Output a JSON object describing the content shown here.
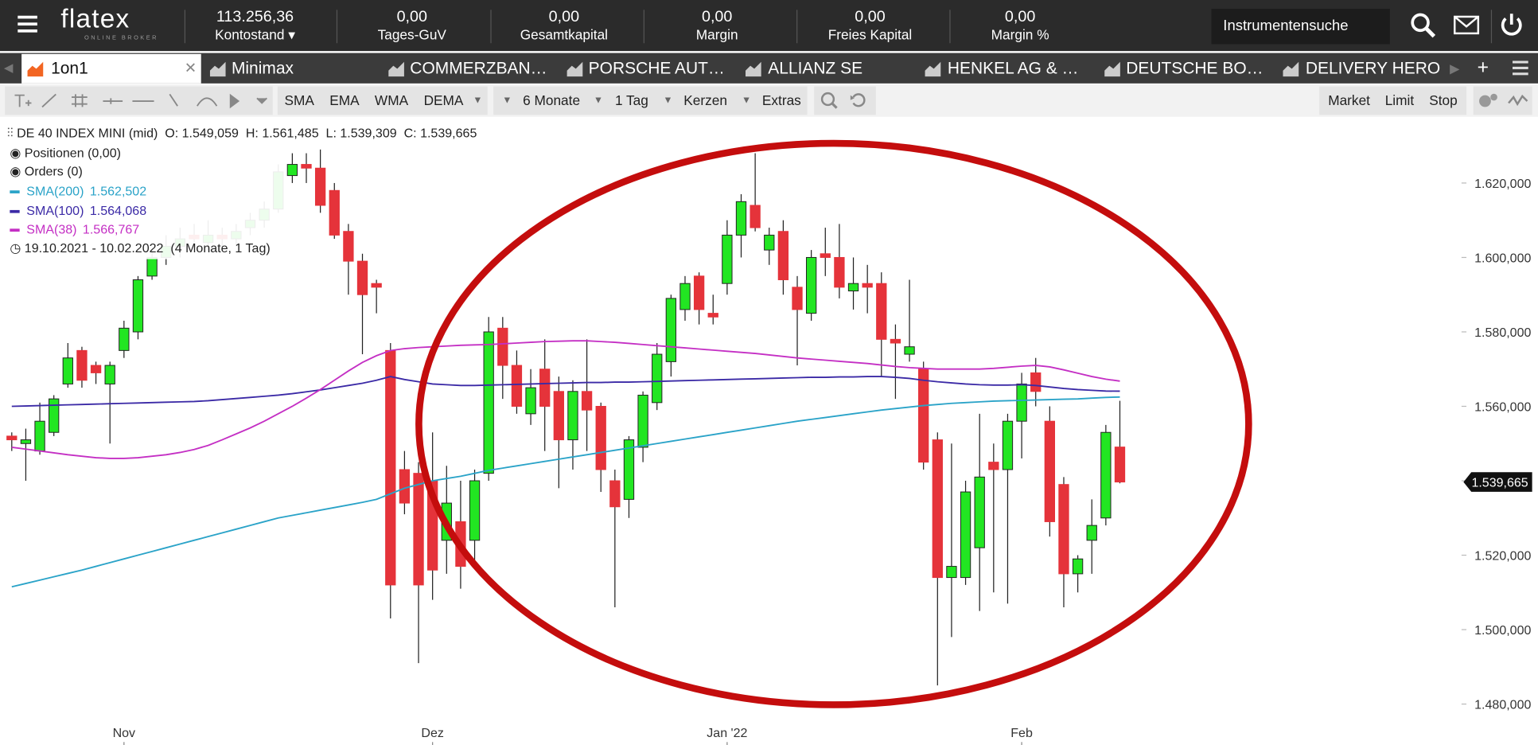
{
  "header": {
    "logo": "flatex",
    "logo_sub": "ONLINE BROKER",
    "stats": [
      {
        "value": "113.256,36",
        "label": "Kontostand"
      },
      {
        "value": "0,00",
        "label": "Tages-GuV"
      },
      {
        "value": "0,00",
        "label": "Gesamtkapital"
      },
      {
        "value": "0,00",
        "label": "Margin"
      },
      {
        "value": "0,00",
        "label": "Freies Kapital"
      },
      {
        "value": "0,00",
        "label": "Margin %"
      }
    ],
    "search": "Instrumentensuche"
  },
  "tabs": [
    "1on1",
    "Minimax",
    "COMMERZBAN…",
    "PORSCHE AUT…",
    "ALLIANZ SE",
    "HENKEL AG & …",
    "DEUTSCHE BO…",
    "DELIVERY HERO"
  ],
  "toolbar": {
    "indicators": [
      "SMA",
      "EMA",
      "WMA",
      "DEMA"
    ],
    "period": "6 Monate",
    "interval": "1 Tag",
    "style": "Kerzen",
    "extras": "Extras",
    "orders": [
      "Market",
      "Limit",
      "Stop"
    ]
  },
  "legend": {
    "positions": "Positionen (0,00)",
    "orders": "Orders (0)",
    "range": "19.10.2021 - 10.02.2022",
    "range_note": "(4 Monate, 1 Tag)"
  },
  "chart_data": {
    "type": "candlestick",
    "title": "DE 40 INDEX MINI (mid)",
    "ohlc_labels": [
      "O: 1.549,059",
      "H: 1.561,485",
      "L: 1.539,309",
      "C: 1.539,665"
    ],
    "last_price_label": "1.539,665",
    "categories": [
      null,
      null,
      null,
      null,
      null,
      null,
      null,
      null,
      "Nov",
      null,
      null,
      null,
      null,
      null,
      null,
      null,
      null,
      null,
      null,
      null,
      null,
      null,
      null,
      null,
      null,
      null,
      null,
      null,
      null,
      null,
      "Dez",
      null,
      null,
      null,
      null,
      null,
      null,
      null,
      null,
      null,
      null,
      null,
      null,
      null,
      null,
      null,
      null,
      null,
      null,
      null,
      null,
      "Jan '22",
      null,
      null,
      null,
      null,
      null,
      null,
      null,
      null,
      null,
      null,
      null,
      null,
      null,
      null,
      null,
      null,
      null,
      null,
      null,
      null,
      "Feb",
      null,
      null,
      null,
      null,
      null,
      null,
      null
    ],
    "open": [
      1552,
      1550,
      1548,
      1553,
      1566,
      1575,
      1571,
      1566,
      1575,
      1580,
      1595,
      1600,
      1603,
      1606,
      1604,
      1606,
      1605,
      1608,
      1610,
      1613,
      1622,
      1625,
      1624,
      1618,
      1607,
      1599,
      1593,
      1575,
      1543,
      1542,
      1540,
      1524,
      1529,
      1524,
      1542,
      1581,
      1571,
      1558,
      1570,
      1564,
      1551,
      1564,
      1560,
      1540,
      1535,
      1549,
      1561,
      1572,
      1586,
      1595,
      1585,
      1593,
      1606,
      1614,
      1602,
      1607,
      1592,
      1585,
      1601,
      1600,
      1591,
      1593,
      1593,
      1578,
      1574,
      1570,
      1551,
      1514,
      1514,
      1522,
      1545,
      1543,
      1556,
      1569,
      1556,
      1539,
      1515,
      1524,
      1530,
      1549.059
    ],
    "high": [
      1553,
      1554,
      1561,
      1563,
      1577,
      1576,
      1572,
      1572,
      1583,
      1595,
      1602,
      1606,
      1608,
      1609,
      1610,
      1608,
      1609,
      1612,
      1615,
      1625,
      1628,
      1628,
      1629,
      1620,
      1609,
      1601,
      1594,
      1577,
      1548,
      1545,
      1553,
      1544,
      1540,
      1543,
      1584,
      1584,
      1575,
      1570,
      1578,
      1568,
      1567,
      1578,
      1561,
      1543,
      1552,
      1564,
      1577,
      1590,
      1595,
      1596,
      1590,
      1610,
      1617,
      1628,
      1608,
      1610,
      1595,
      1602,
      1608,
      1609,
      1600,
      1598,
      1596,
      1582,
      1594,
      1572,
      1553,
      1550,
      1540,
      1558,
      1550,
      1558,
      1569,
      1573,
      1560,
      1541,
      1520,
      1535,
      1555,
      1561.485
    ],
    "low": [
      1548,
      1540,
      1547,
      1552,
      1565,
      1565,
      1566,
      1550,
      1573,
      1578,
      1594,
      1598,
      1600,
      1603,
      1602,
      1602,
      1603,
      1606,
      1608,
      1612,
      1620,
      1620,
      1612,
      1605,
      1590,
      1574,
      1585,
      1503,
      1531,
      1491,
      1508,
      1515,
      1511,
      1517,
      1540,
      1562,
      1558,
      1555,
      1548,
      1538,
      1543,
      1548,
      1537,
      1506,
      1530,
      1545,
      1559,
      1568,
      1583,
      1582,
      1582,
      1590,
      1600,
      1607,
      1598,
      1590,
      1571,
      1583,
      1595,
      1589,
      1586,
      1585,
      1568,
      1562,
      1572,
      1543,
      1485,
      1498,
      1512,
      1505,
      1510,
      1507,
      1546,
      1560,
      1525,
      1506,
      1510,
      1515,
      1528,
      1539.309
    ],
    "close": [
      1551,
      1551,
      1556,
      1562,
      1573,
      1567,
      1569,
      1571,
      1581,
      1594,
      1600,
      1603,
      1605,
      1605,
      1606,
      1605,
      1607,
      1610,
      1613,
      1623,
      1625,
      1624,
      1614,
      1606,
      1599,
      1590,
      1592,
      1512,
      1534,
      1512,
      1516,
      1534,
      1517,
      1540,
      1580,
      1571,
      1560,
      1565,
      1560,
      1551,
      1564,
      1559,
      1543,
      1533,
      1551,
      1563,
      1574,
      1589,
      1593,
      1586,
      1584,
      1606,
      1615,
      1608,
      1606,
      1594,
      1586,
      1600,
      1600,
      1592,
      1593,
      1592,
      1578,
      1577,
      1576,
      1545,
      1514,
      1517,
      1537,
      1541,
      1543,
      1556,
      1566,
      1564,
      1529,
      1515,
      1519,
      1528,
      1553,
      1539.665
    ],
    "up_color": "#22e622",
    "down_color": "#e5333a",
    "series": [
      {
        "name": "SMA(200)",
        "color": "#2aa3c8",
        "value_label": "1.562,502",
        "values": [
          1511.5,
          1512.4,
          1513.3,
          1514.2,
          1515.1,
          1516,
          1517,
          1518,
          1519,
          1520,
          1521,
          1522,
          1523,
          1524,
          1525,
          1526,
          1527,
          1528,
          1529,
          1530,
          1530.7,
          1531.4,
          1532.1,
          1532.8,
          1533.5,
          1534.2,
          1535,
          1536.5,
          1538,
          1539,
          1540,
          1540.6,
          1541.2,
          1542,
          1542.8,
          1543.4,
          1544,
          1544.6,
          1545.2,
          1545.8,
          1546.4,
          1547,
          1547.6,
          1548.2,
          1548.8,
          1549.4,
          1550,
          1550.6,
          1551.2,
          1551.8,
          1552.4,
          1553,
          1553.6,
          1554.2,
          1554.8,
          1555.4,
          1556,
          1556.5,
          1557,
          1557.5,
          1558,
          1558.5,
          1559,
          1559.4,
          1559.8,
          1560.2,
          1560.5,
          1560.8,
          1561,
          1561.2,
          1561.4,
          1561.5,
          1561.6,
          1561.7,
          1561.8,
          1561.9,
          1562,
          1562.2,
          1562.4,
          1562.502
        ]
      },
      {
        "name": "SMA(100)",
        "color": "#3b2aa6",
        "value_label": "1.564,068",
        "values": [
          1560,
          1560.1,
          1560.2,
          1560.3,
          1560.4,
          1560.5,
          1560.6,
          1560.7,
          1560.8,
          1560.9,
          1561,
          1561.1,
          1561.2,
          1561.3,
          1561.5,
          1561.8,
          1562.1,
          1562.4,
          1562.7,
          1563,
          1563.4,
          1563.9,
          1564.4,
          1565,
          1565.6,
          1566.2,
          1567,
          1568,
          1567.2,
          1566.6,
          1566,
          1565.8,
          1565.6,
          1565.6,
          1565.7,
          1565.8,
          1565.9,
          1566,
          1566.1,
          1566.2,
          1566.3,
          1566.4,
          1566.4,
          1566.5,
          1566.5,
          1566.6,
          1566.7,
          1566.8,
          1566.9,
          1567,
          1567.1,
          1567.2,
          1567.3,
          1567.4,
          1567.5,
          1567.6,
          1567.7,
          1567.8,
          1567.8,
          1567.9,
          1567.9,
          1568,
          1568,
          1567.8,
          1567.5,
          1567,
          1566.6,
          1566.3,
          1566,
          1565.8,
          1565.7,
          1565.7,
          1565.8,
          1565.6,
          1565.2,
          1564.8,
          1564.5,
          1564.3,
          1564.1,
          1564.068
        ]
      },
      {
        "name": "SMA(38)",
        "color": "#c42fc4",
        "value_label": "1.566,767",
        "values": [
          1549,
          1548.5,
          1548,
          1547.5,
          1547,
          1546.6,
          1546.2,
          1546,
          1546,
          1546.2,
          1546.6,
          1547,
          1547.6,
          1548.4,
          1549.5,
          1551,
          1552.6,
          1554.2,
          1556,
          1558,
          1560,
          1562.2,
          1564.5,
          1567,
          1569.5,
          1571.8,
          1573.6,
          1575,
          1575.5,
          1575.8,
          1576,
          1576.2,
          1576.4,
          1576.5,
          1576.6,
          1576.8,
          1577,
          1577.2,
          1577.4,
          1577.5,
          1577.6,
          1577.6,
          1577.4,
          1577.2,
          1576.9,
          1576.6,
          1576.3,
          1576,
          1575.7,
          1575.4,
          1575.1,
          1574.8,
          1574.5,
          1574.2,
          1573.8,
          1573.4,
          1573,
          1572.7,
          1572.4,
          1572.1,
          1571.8,
          1571.5,
          1571.1,
          1570.7,
          1570.4,
          1570.2,
          1570,
          1570,
          1570,
          1570,
          1570.2,
          1570.5,
          1570.8,
          1571,
          1570.6,
          1569.8,
          1568.9,
          1568,
          1567.3,
          1566.767
        ]
      }
    ],
    "ylim": [
      1469,
      1637
    ],
    "yticks": [
      {
        "value": 1480,
        "label": "1.480,000"
      },
      {
        "value": 1500,
        "label": "1.500,000"
      },
      {
        "value": 1520,
        "label": "1.520,000"
      },
      {
        "value": 1540,
        "label": "1.540,000"
      },
      {
        "value": 1560,
        "label": "1.560,000"
      },
      {
        "value": 1580,
        "label": "1.580,000"
      },
      {
        "value": 1600,
        "label": "1.600,000"
      },
      {
        "value": 1620,
        "label": "1.620,000"
      }
    ],
    "grid": false
  }
}
